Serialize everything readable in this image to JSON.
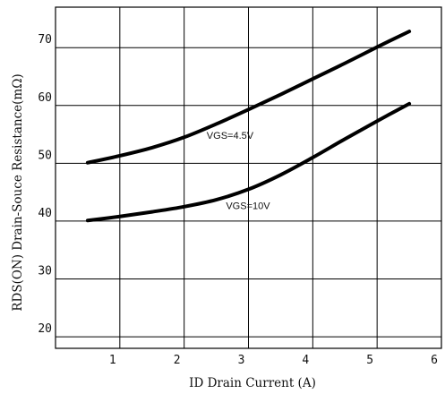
{
  "chart_data": {
    "type": "line",
    "xlabel": "ID Drain Current (A)",
    "ylabel": "RDS(ON) Drain-Souce Resistance(mΩ)",
    "xlim": [
      0,
      6
    ],
    "ylim": [
      18,
      77
    ],
    "x_ticks": [
      1,
      2,
      3,
      4,
      5,
      6
    ],
    "y_ticks": [
      20,
      30,
      40,
      50,
      60,
      70
    ],
    "grid": true,
    "series": [
      {
        "name": "VGS=4.5V",
        "x": [
          0.5,
          1.0,
          1.5,
          2.0,
          2.5,
          3.0,
          3.5,
          4.0,
          4.5,
          5.0,
          5.5
        ],
        "y": [
          50.1,
          51.3,
          52.7,
          54.5,
          56.8,
          59.3,
          61.9,
          64.6,
          67.3,
          70.1,
          72.8
        ]
      },
      {
        "name": "VGS=10V",
        "x": [
          0.5,
          1.0,
          1.5,
          2.0,
          2.5,
          3.0,
          3.5,
          4.0,
          4.5,
          5.0,
          5.5
        ],
        "y": [
          40.1,
          40.8,
          41.6,
          42.5,
          43.7,
          45.5,
          48.0,
          51.0,
          54.2,
          57.3,
          60.3
        ]
      }
    ]
  }
}
